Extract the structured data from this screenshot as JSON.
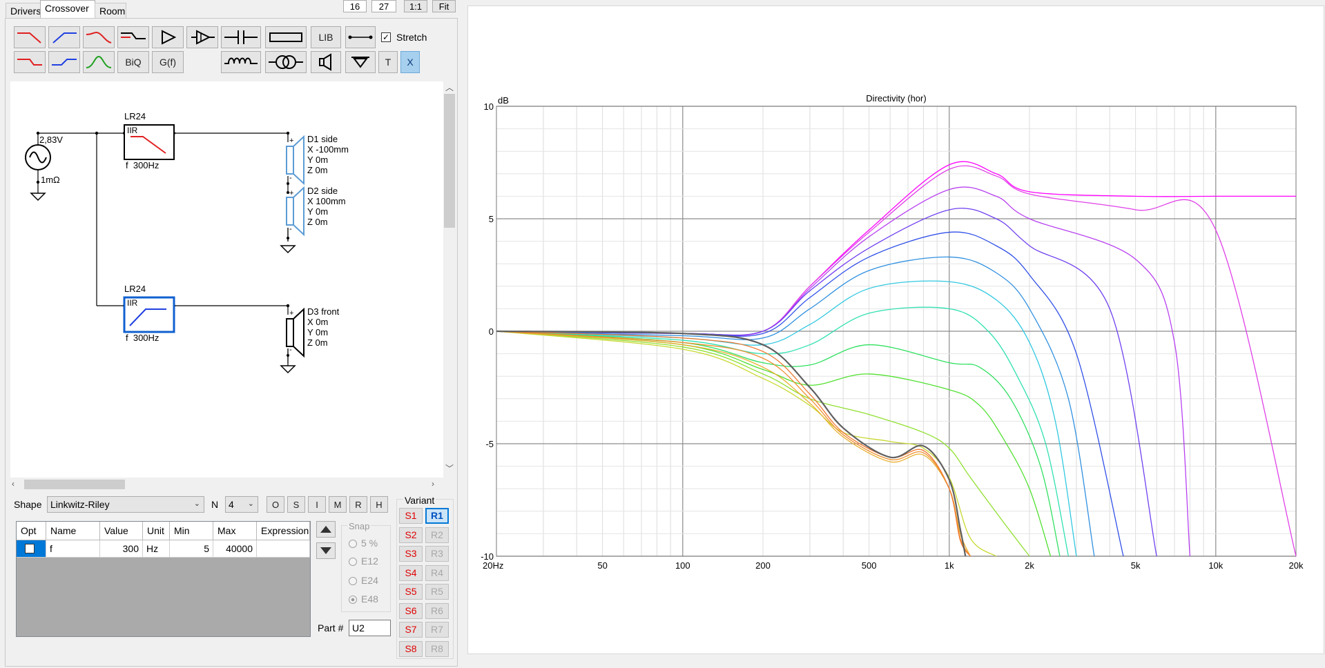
{
  "tabs": [
    {
      "label": "Drivers"
    },
    {
      "label": "Crossover"
    },
    {
      "label": "Room"
    }
  ],
  "top_controls": {
    "val1": "16",
    "val2": "27",
    "one_to_one": "1:1",
    "fit": "Fit"
  },
  "toolbar": {
    "lib": "LIB",
    "stretch": "Stretch",
    "biq": "BiQ",
    "gf": "G(f)",
    "t": "T",
    "x": "X"
  },
  "schematic": {
    "source_voltage": "2,83V",
    "source_impedance": "1mΩ",
    "filter1": {
      "title": "LR24",
      "type": "IIR",
      "freq": "f  300Hz"
    },
    "filter2": {
      "title": "LR24",
      "type": "IIR",
      "freq": "f  300Hz"
    },
    "driver1": {
      "name": "D1 side",
      "x": "X -100mm",
      "y": "Y 0m",
      "z": "Z 0m"
    },
    "driver2": {
      "name": "D2 side",
      "x": "X 100mm",
      "y": "Y 0m",
      "z": "Z 0m"
    },
    "driver3": {
      "name": "D3 front",
      "x": "X 0m",
      "y": "Y 0m",
      "z": "Z 0m"
    },
    "plus": "+",
    "minus": "-"
  },
  "shape_row": {
    "shape_label": "Shape",
    "shape_value": "Linkwitz-Riley",
    "n_label": "N",
    "n_value": "4",
    "buttons": [
      "O",
      "S",
      "I",
      "M",
      "R",
      "H"
    ]
  },
  "params_table": {
    "headers": [
      "Opt",
      "Name",
      "Value",
      "Unit",
      "Min",
      "Max",
      "Expression"
    ],
    "row": {
      "name": "f",
      "value": "300",
      "unit": "Hz",
      "min": "5",
      "max": "40000",
      "expression": ""
    }
  },
  "snap": {
    "label": "Snap",
    "options": [
      "5 %",
      "E12",
      "E24",
      "E48"
    ],
    "selected": "E48"
  },
  "part": {
    "label": "Part #",
    "value": "U2"
  },
  "variant": {
    "label": "Variant",
    "s": [
      "S1",
      "S2",
      "S3",
      "S4",
      "S5",
      "S6",
      "S7",
      "S8"
    ],
    "r": [
      "R1",
      "R2",
      "R3",
      "R4",
      "R5",
      "R6",
      "R7",
      "R8"
    ],
    "selected": "R1"
  },
  "chart_data": {
    "type": "line",
    "title": "Directivity (hor)",
    "ylabel": "dB",
    "xscale": "log",
    "xlim": [
      20,
      20000
    ],
    "ylim": [
      -10,
      10
    ],
    "grid": true,
    "y_ticks": [
      "10",
      "5",
      "0",
      "-5",
      "-10"
    ],
    "x_ticks": [
      "20Hz",
      "50",
      "100",
      "200",
      "500",
      "1k",
      "2k",
      "5k",
      "10k",
      "20k"
    ],
    "series": [
      {
        "color": "#ff00ff",
        "x": [
          20,
          100,
          200,
          300,
          500,
          1000,
          1500,
          2000,
          5000,
          10000,
          20000
        ],
        "y": [
          0,
          -0.1,
          0,
          2,
          4.5,
          7.4,
          7,
          6.2,
          6,
          6,
          6
        ]
      },
      {
        "color": "#e040e8",
        "x": [
          20,
          100,
          200,
          300,
          500,
          1000,
          1500,
          2000,
          5000,
          10000,
          20000
        ],
        "y": [
          0,
          -0.1,
          0,
          2,
          4.4,
          7.2,
          6.9,
          6.1,
          5.4,
          4.5,
          -10
        ]
      },
      {
        "color": "#b840f0",
        "x": [
          20,
          100,
          200,
          300,
          500,
          1000,
          1500,
          2000,
          5000,
          7000,
          8000
        ],
        "y": [
          0,
          -0.1,
          0,
          1.9,
          4.2,
          6.3,
          6,
          5,
          3.2,
          -0.5,
          -10
        ]
      },
      {
        "color": "#7040f0",
        "x": [
          20,
          100,
          200,
          300,
          500,
          1000,
          1500,
          2000,
          4000,
          6000
        ],
        "y": [
          0,
          -0.1,
          0,
          1.8,
          3.7,
          5.4,
          5,
          3.8,
          1,
          -10
        ]
      },
      {
        "color": "#3050e8",
        "x": [
          20,
          100,
          200,
          300,
          500,
          1000,
          1500,
          2000,
          3000,
          4500
        ],
        "y": [
          0,
          -0.1,
          -0.1,
          1.5,
          3.3,
          4.4,
          3.8,
          2.5,
          -1,
          -10
        ]
      },
      {
        "color": "#3090e0",
        "x": [
          20,
          100,
          200,
          300,
          500,
          1000,
          1500,
          2000,
          2800,
          3500
        ],
        "y": [
          0,
          -0.2,
          -0.3,
          1.0,
          2.7,
          3.3,
          2.6,
          1,
          -3,
          -10
        ]
      },
      {
        "color": "#30c8e0",
        "x": [
          20,
          100,
          200,
          300,
          500,
          1000,
          1500,
          2000,
          2500,
          3000
        ],
        "y": [
          0,
          -0.3,
          -0.6,
          0.3,
          1.9,
          2.2,
          1.4,
          -0.5,
          -4,
          -10
        ]
      },
      {
        "color": "#30e0b0",
        "x": [
          20,
          100,
          200,
          300,
          500,
          1000,
          1400,
          1800,
          2300,
          2800
        ],
        "y": [
          0,
          -0.4,
          -1,
          -0.6,
          0.8,
          1.0,
          0,
          -2,
          -5,
          -10
        ]
      },
      {
        "color": "#30e060",
        "x": [
          20,
          100,
          200,
          300,
          500,
          1000,
          1300,
          1700,
          2200,
          2600
        ],
        "y": [
          0,
          -0.5,
          -1.4,
          -1.5,
          -0.6,
          -1.4,
          -1.6,
          -3,
          -6,
          -10
        ]
      },
      {
        "color": "#50e030",
        "x": [
          20,
          100,
          200,
          300,
          500,
          1000,
          1300,
          1600,
          2000,
          2400
        ],
        "y": [
          0,
          -0.6,
          -1.7,
          -2.4,
          -1.9,
          -2.6,
          -3.3,
          -4.8,
          -7,
          -10
        ]
      },
      {
        "color": "#90e030",
        "x": [
          20,
          100,
          200,
          300,
          500,
          800,
          1000,
          1200,
          1600,
          2000
        ],
        "y": [
          0,
          -0.7,
          -1.9,
          -3,
          -3.7,
          -4.5,
          -5.2,
          -6.5,
          -8.5,
          -10
        ]
      },
      {
        "color": "#c8d830",
        "x": [
          20,
          100,
          200,
          300,
          400,
          600,
          800,
          1000,
          1200,
          1500
        ],
        "y": [
          0,
          -0.8,
          -2.1,
          -3.3,
          -4.5,
          -4.9,
          -5.2,
          -6.5,
          -9.2,
          -10
        ]
      },
      {
        "color": "#e8b030",
        "x": [
          20,
          100,
          200,
          300,
          400,
          600,
          800,
          1000,
          1100,
          1200
        ],
        "y": [
          0,
          -0.6,
          -1.6,
          -3.2,
          -4.7,
          -5.8,
          -5.5,
          -7,
          -9,
          -10
        ]
      },
      {
        "color": "#f09030",
        "x": [
          20,
          100,
          200,
          300,
          400,
          600,
          800,
          1000,
          1100,
          1200
        ],
        "y": [
          0,
          -0.5,
          -1.2,
          -3,
          -4.6,
          -5.7,
          -5.4,
          -7,
          -9.2,
          -10
        ]
      },
      {
        "color": "#f07830",
        "x": [
          20,
          100,
          200,
          300,
          400,
          600,
          800,
          1000,
          1100,
          1200
        ],
        "y": [
          0,
          -0.3,
          -0.9,
          -2.8,
          -4.5,
          -5.6,
          -5.3,
          -7,
          -9.3,
          -10
        ]
      },
      {
        "color": "#606060",
        "x": [
          20,
          100,
          200,
          300,
          400,
          600,
          800,
          1000,
          1100,
          1150
        ],
        "y": [
          0,
          -0.1,
          -0.6,
          -2.5,
          -4.3,
          -5.6,
          -5.1,
          -6.6,
          -8.8,
          -10
        ]
      }
    ]
  }
}
